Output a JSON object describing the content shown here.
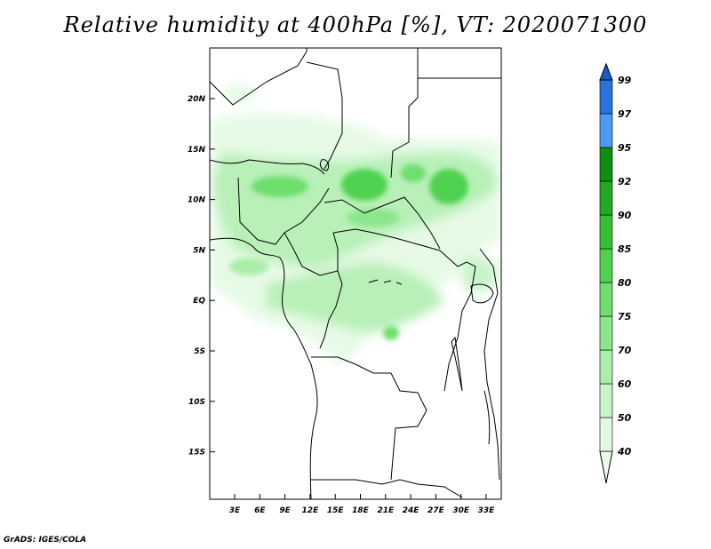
{
  "title": "Relative humidity at 400hPa [%], VT: 2020071300",
  "footer": "GrADS: IGES/COLA",
  "lon_labels": [
    "3E",
    "6E",
    "9E",
    "12E",
    "15E",
    "18E",
    "21E",
    "24E",
    "27E",
    "30E",
    "33E"
  ],
  "lat_labels": [
    "20N",
    "15N",
    "10N",
    "5N",
    "EQ",
    "5S",
    "10S",
    "15S"
  ],
  "colorbar": {
    "levels": [
      "40",
      "50",
      "60",
      "70",
      "75",
      "80",
      "85",
      "90",
      "92",
      "95",
      "97",
      "99"
    ],
    "colors": [
      "#f0fcf0",
      "#e1f9e1",
      "#c8f4c8",
      "#aaeeaa",
      "#8ce68c",
      "#6ede6e",
      "#50d250",
      "#36c036",
      "#22a822",
      "#108e10",
      "#4a9cf0",
      "#2873dc",
      "#1a5ac8"
    ]
  }
}
